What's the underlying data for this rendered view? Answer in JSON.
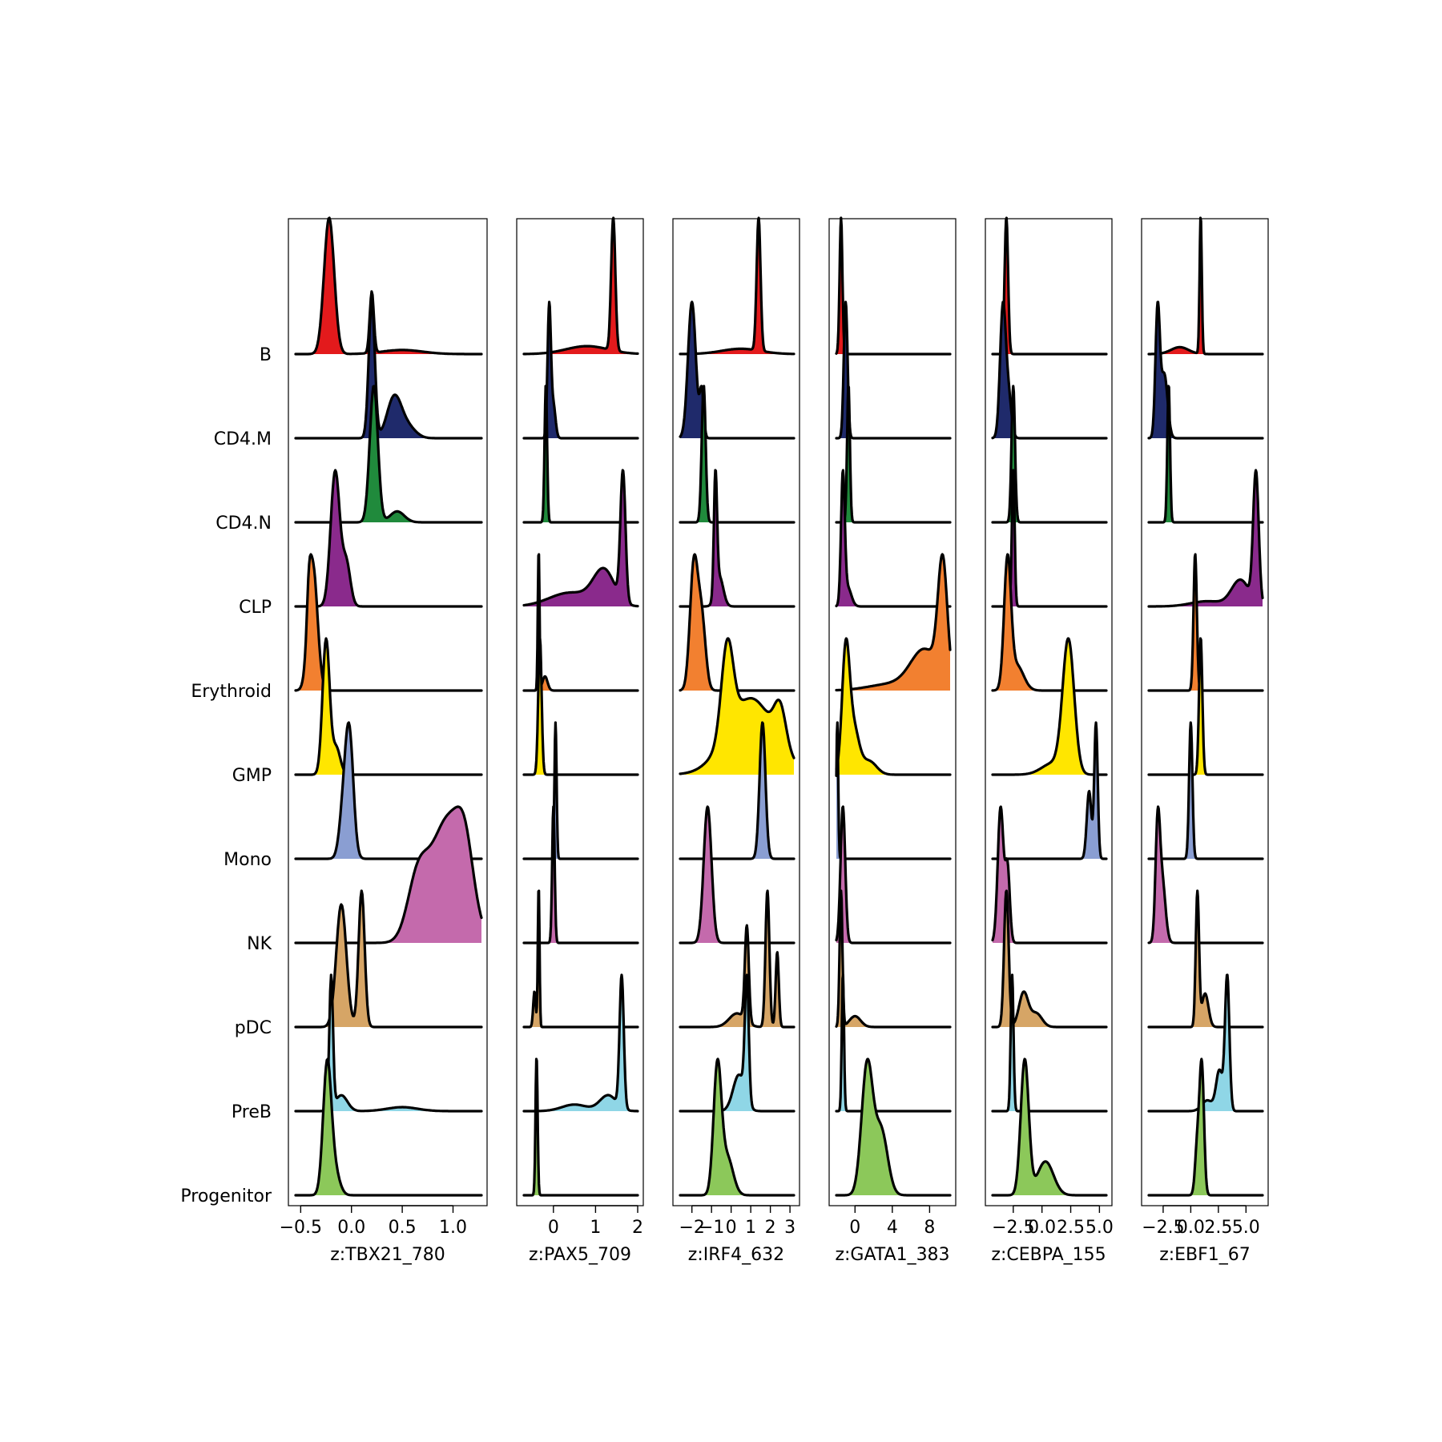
{
  "chart_data": {
    "type": "ridgeline",
    "groups": [
      "B",
      "CD4.M",
      "CD4.N",
      "CLP",
      "Erythroid",
      "GMP",
      "Mono",
      "NK",
      "pDC",
      "PreB",
      "Progenitor"
    ],
    "group_colors": {
      "B": "#e31a1c",
      "CD4.M": "#1f2a6b",
      "CD4.N": "#208a3c",
      "CLP": "#8a2a8c",
      "Erythroid": "#f28030",
      "GMP": "#ffe600",
      "Mono": "#8a9ed2",
      "NK": "#c46aac",
      "pDC": "#d6a566",
      "PreB": "#8fd6e6",
      "Progenitor": "#8cc85a"
    },
    "panels": [
      {
        "xlabel": "z:TBX21_780",
        "xlim": [
          -0.55,
          1.28
        ],
        "ticks": [
          -0.5,
          0.0,
          0.5,
          1.0
        ],
        "tick_labels": [
          "−0.5",
          "0.0",
          "0.5",
          "1.0"
        ],
        "distributions": {
          "B": [
            [
              -0.22,
              0.05,
              1.0
            ],
            [
              0.2,
              0.02,
              0.45
            ],
            [
              0.5,
              0.2,
              0.03
            ]
          ],
          "CD4.M": [
            [
              0.2,
              0.03,
              0.95
            ],
            [
              0.42,
              0.07,
              0.28
            ],
            [
              0.55,
              0.08,
              0.08
            ]
          ],
          "CD4.N": [
            [
              0.22,
              0.04,
              1.0
            ],
            [
              0.45,
              0.07,
              0.08
            ]
          ],
          "CLP": [
            [
              -0.16,
              0.045,
              0.95
            ],
            [
              -0.05,
              0.04,
              0.3
            ]
          ],
          "Erythroid": [
            [
              -0.38,
              0.045,
              1.0
            ],
            [
              -0.42,
              0.02,
              0.3
            ]
          ],
          "GMP": [
            [
              -0.25,
              0.035,
              1.0
            ],
            [
              -0.15,
              0.04,
              0.2
            ]
          ],
          "Mono": [
            [
              -0.02,
              0.04,
              0.95
            ],
            [
              -0.08,
              0.04,
              0.35
            ]
          ],
          "NK": [
            [
              0.95,
              0.17,
              0.9
            ],
            [
              0.65,
              0.1,
              0.4
            ],
            [
              1.12,
              0.08,
              0.35
            ]
          ],
          "pDC": [
            [
              -0.1,
              0.05,
              0.9
            ],
            [
              0.1,
              0.03,
              1.0
            ]
          ],
          "PreB": [
            [
              -0.2,
              0.018,
              1.0
            ],
            [
              -0.1,
              0.06,
              0.12
            ],
            [
              0.5,
              0.15,
              0.03
            ]
          ],
          "Progenitor": [
            [
              -0.24,
              0.04,
              1.0
            ],
            [
              -0.17,
              0.05,
              0.2
            ]
          ]
        }
      },
      {
        "xlabel": "z:PAX5_709",
        "xlim": [
          -0.7,
          2.0
        ],
        "ticks": [
          0,
          1,
          2
        ],
        "tick_labels": [
          "0",
          "1",
          "2"
        ],
        "distributions": {
          "B": [
            [
              1.42,
              0.05,
              1.0
            ],
            [
              0.8,
              0.5,
              0.06
            ]
          ],
          "CD4.M": [
            [
              -0.1,
              0.04,
              1.0
            ],
            [
              0.0,
              0.05,
              0.25
            ]
          ],
          "CD4.N": [
            [
              -0.18,
              0.03,
              1.0
            ]
          ],
          "CLP": [
            [
              1.65,
              0.06,
              0.75
            ],
            [
              1.2,
              0.25,
              0.2
            ],
            [
              0.4,
              0.5,
              0.08
            ]
          ],
          "Erythroid": [
            [
              -0.35,
              0.02,
              1.0
            ],
            [
              -0.2,
              0.06,
              0.1
            ]
          ],
          "GMP": [
            [
              -0.32,
              0.04,
              1.0
            ]
          ],
          "Mono": [
            [
              0.05,
              0.025,
              1.0
            ]
          ],
          "NK": [
            [
              0.0,
              0.03,
              1.0
            ]
          ],
          "pDC": [
            [
              -0.35,
              0.02,
              1.0
            ],
            [
              -0.45,
              0.03,
              0.25
            ]
          ],
          "PreB": [
            [
              1.62,
              0.05,
              1.0
            ],
            [
              1.3,
              0.2,
              0.12
            ],
            [
              0.5,
              0.3,
              0.05
            ]
          ],
          "Progenitor": [
            [
              -0.4,
              0.025,
              1.0
            ]
          ]
        }
      },
      {
        "xlabel": "z:IRF4_632",
        "xlim": [
          -2.6,
          3.2
        ],
        "ticks": [
          -2,
          -1,
          0,
          1,
          2,
          3
        ],
        "tick_labels": [
          "−2",
          "−1",
          "0",
          "1",
          "2",
          "3"
        ],
        "distributions": {
          "B": [
            [
              1.4,
              0.1,
              1.0
            ],
            [
              0.5,
              1.0,
              0.04
            ]
          ],
          "CD4.M": [
            [
              -2.0,
              0.2,
              0.9
            ],
            [
              -1.5,
              0.1,
              0.3
            ]
          ],
          "CD4.N": [
            [
              -1.4,
              0.1,
              1.0
            ]
          ],
          "CLP": [
            [
              -0.8,
              0.08,
              1.0
            ],
            [
              -0.6,
              0.2,
              0.25
            ]
          ],
          "Erythroid": [
            [
              -1.9,
              0.2,
              0.8
            ],
            [
              -1.5,
              0.2,
              0.45
            ]
          ],
          "GMP": [
            [
              -0.2,
              0.3,
              0.35
            ],
            [
              1.0,
              1.2,
              0.3
            ],
            [
              2.5,
              0.3,
              0.15
            ]
          ],
          "Mono": [
            [
              1.6,
              0.15,
              1.0
            ]
          ],
          "NK": [
            [
              -1.2,
              0.2,
              1.0
            ]
          ],
          "pDC": [
            [
              1.85,
              0.1,
              1.0
            ],
            [
              2.35,
              0.08,
              0.55
            ],
            [
              0.8,
              0.1,
              0.7
            ],
            [
              0.3,
              0.4,
              0.1
            ]
          ],
          "PreB": [
            [
              0.8,
              0.1,
              1.0
            ],
            [
              0.4,
              0.3,
              0.3
            ]
          ],
          "Progenitor": [
            [
              -0.7,
              0.2,
              1.0
            ],
            [
              -0.2,
              0.3,
              0.3
            ]
          ]
        }
      },
      {
        "xlabel": "z:GATA1_383",
        "xlim": [
          -2.0,
          10.2
        ],
        "ticks": [
          0,
          4,
          8
        ],
        "tick_labels": [
          "0",
          "4",
          "8"
        ],
        "distributions": {
          "B": [
            [
              -1.5,
              0.15,
              1.0
            ]
          ],
          "CD4.M": [
            [
              -1.0,
              0.2,
              1.0
            ]
          ],
          "CD4.N": [
            [
              -0.7,
              0.15,
              1.0
            ]
          ],
          "CLP": [
            [
              -1.3,
              0.2,
              1.0
            ],
            [
              -0.8,
              0.4,
              0.15
            ]
          ],
          "Erythroid": [
            [
              9.4,
              0.5,
              0.9
            ],
            [
              7.5,
              1.5,
              0.3
            ],
            [
              4.0,
              2.5,
              0.05
            ]
          ],
          "GMP": [
            [
              -1.0,
              0.4,
              0.85
            ],
            [
              -0.2,
              0.6,
              0.35
            ],
            [
              1.5,
              0.8,
              0.1
            ]
          ],
          "Mono": [
            [
              -1.9,
              0.1,
              1.0
            ]
          ],
          "NK": [
            [
              -1.3,
              0.25,
              1.0
            ]
          ],
          "pDC": [
            [
              -1.5,
              0.15,
              1.0
            ],
            [
              0.0,
              0.6,
              0.08
            ]
          ],
          "PreB": [
            [
              -1.3,
              0.12,
              1.0
            ]
          ],
          "Progenitor": [
            [
              1.3,
              0.6,
              1.0
            ],
            [
              2.8,
              0.7,
              0.5
            ]
          ]
        }
      },
      {
        "xlabel": "z:CEBPA_155",
        "xlim": [
          -4.3,
          5.6
        ],
        "ticks": [
          -2.5,
          0.0,
          2.5,
          5.0
        ],
        "tick_labels": [
          "−2.5",
          "0.0",
          "2.5",
          "5.0"
        ],
        "distributions": {
          "B": [
            [
              -3.1,
              0.15,
              1.0
            ]
          ],
          "CD4.M": [
            [
              -3.4,
              0.25,
              1.0
            ],
            [
              -2.9,
              0.25,
              0.3
            ]
          ],
          "CD4.N": [
            [
              -2.5,
              0.15,
              1.0
            ]
          ],
          "CLP": [
            [
              -2.5,
              0.12,
              1.0
            ]
          ],
          "Erythroid": [
            [
              -3.0,
              0.3,
              1.0
            ],
            [
              -2.2,
              0.6,
              0.2
            ]
          ],
          "GMP": [
            [
              2.3,
              0.5,
              0.9
            ],
            [
              1.0,
              1.0,
              0.08
            ]
          ],
          "Mono": [
            [
              4.7,
              0.15,
              1.0
            ],
            [
              4.1,
              0.2,
              0.5
            ]
          ],
          "NK": [
            [
              -3.6,
              0.25,
              1.0
            ],
            [
              -3.0,
              0.2,
              0.55
            ]
          ],
          "pDC": [
            [
              -3.1,
              0.2,
              1.0
            ],
            [
              -1.6,
              0.4,
              0.25
            ],
            [
              -0.5,
              0.5,
              0.1
            ]
          ],
          "PreB": [
            [
              -2.6,
              0.12,
              1.0
            ]
          ],
          "Progenitor": [
            [
              -1.5,
              0.35,
              1.0
            ],
            [
              0.3,
              0.7,
              0.25
            ]
          ]
        }
      },
      {
        "xlabel": "z:EBF1_67",
        "xlim": [
          -3.8,
          6.5
        ],
        "ticks": [
          -2.5,
          0.0,
          2.5,
          5.0
        ],
        "tick_labels": [
          "−2.5",
          "0.0",
          "2.5",
          "5.0"
        ],
        "distributions": {
          "B": [
            [
              0.9,
              0.1,
              1.0
            ],
            [
              -1.0,
              0.8,
              0.05
            ]
          ],
          "CD4.M": [
            [
              -3.0,
              0.2,
              0.8
            ],
            [
              -2.4,
              0.3,
              0.4
            ]
          ],
          "CD4.N": [
            [
              -2.0,
              0.12,
              1.0
            ]
          ],
          "CLP": [
            [
              5.9,
              0.25,
              1.0
            ],
            [
              4.5,
              0.8,
              0.2
            ],
            [
              1.5,
              1.5,
              0.04
            ]
          ],
          "Erythroid": [
            [
              0.4,
              0.15,
              1.0
            ]
          ],
          "GMP": [
            [
              0.9,
              0.15,
              1.0
            ]
          ],
          "Mono": [
            [
              0.0,
              0.15,
              1.0
            ]
          ],
          "NK": [
            [
              -3.0,
              0.2,
              0.85
            ],
            [
              -2.6,
              0.3,
              0.5
            ]
          ],
          "pDC": [
            [
              0.6,
              0.15,
              1.0
            ],
            [
              1.3,
              0.3,
              0.25
            ]
          ],
          "PreB": [
            [
              3.3,
              0.2,
              1.0
            ],
            [
              2.6,
              0.3,
              0.3
            ],
            [
              1.5,
              0.5,
              0.08
            ]
          ],
          "Progenitor": [
            [
              1.0,
              0.2,
              1.0
            ],
            [
              0.6,
              0.2,
              0.4
            ]
          ]
        }
      }
    ]
  }
}
